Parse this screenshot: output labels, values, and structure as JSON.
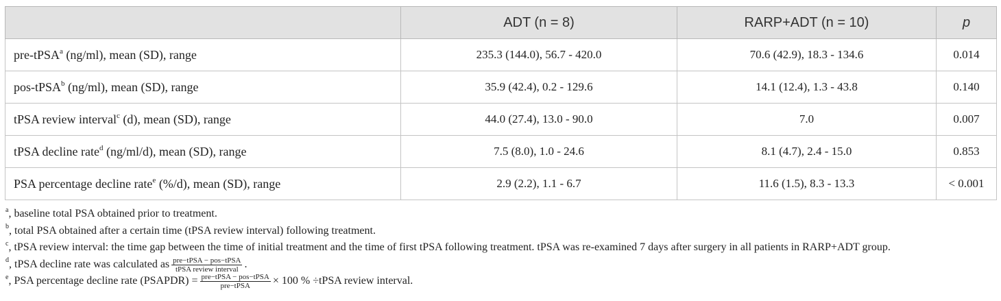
{
  "table": {
    "headers": [
      "",
      "ADT (n = 8)",
      "RARP+ADT (n = 10)",
      "p"
    ],
    "rows": [
      {
        "label_pre": "pre-tPSA",
        "sup": "a",
        "label_post": " (ng/ml), mean (SD), range",
        "adt": "235.3 (144.0), 56.7 - 420.0",
        "rarp": "70.6 (42.9), 18.3 - 134.6",
        "p": "0.014"
      },
      {
        "label_pre": "pos-tPSA",
        "sup": "b",
        "label_post": " (ng/ml), mean (SD), range",
        "adt": "35.9 (42.4), 0.2 - 129.6",
        "rarp": "14.1 (12.4), 1.3 - 43.8",
        "p": "0.140"
      },
      {
        "label_pre": "tPSA review interval",
        "sup": "c",
        "label_post": " (d), mean (SD), range",
        "adt": "44.0 (27.4), 13.0 - 90.0",
        "rarp": "7.0",
        "p": "0.007"
      },
      {
        "label_pre": "tPSA decline rate",
        "sup": "d",
        "label_post": " (ng/ml/d), mean (SD), range",
        "adt": "7.5 (8.0), 1.0 - 24.6",
        "rarp": "8.1 (4.7), 2.4 - 15.0",
        "p": "0.853"
      },
      {
        "label_pre": "PSA percentage decline rate",
        "sup": "e",
        "label_post": " (%/d), mean (SD), range",
        "adt": "2.9 (2.2), 1.1 - 6.7",
        "rarp": "11.6 (1.5), 8.3 - 13.3",
        "p": "< 0.001"
      }
    ]
  },
  "footnotes": {
    "a": {
      "mark": "a",
      "text": ", baseline total PSA obtained prior to treatment."
    },
    "b": {
      "mark": "b",
      "text": ", total PSA obtained after a certain time (tPSA review interval) following treatment."
    },
    "c": {
      "mark": "c",
      "text": ", tPSA review interval: the time gap between the time of initial treatment and the time of first tPSA following treatment. tPSA was re-examined 7 days after surgery in all patients in RARP+ADT group."
    },
    "d": {
      "mark": "d",
      "text": ", tPSA decline rate was calculated as",
      "frac_num": "pre−tPSA − pos−tPSA",
      "frac_den": "tPSA review interval",
      "after": "."
    },
    "e": {
      "mark": "e",
      "text": ", PSA percentage decline rate (PSAPDR) =",
      "frac_num": "pre−tPSA − pos−tPSA",
      "frac_den": "pre−tPSA",
      "after": "× 100 % ÷tPSA review interval."
    }
  }
}
